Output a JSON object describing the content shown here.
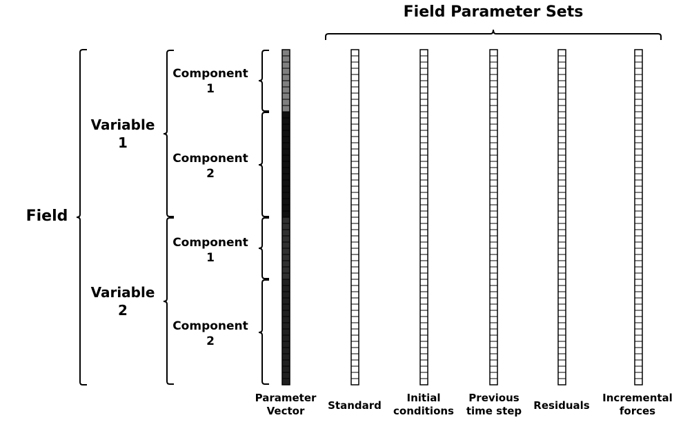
{
  "title": "Field Parameter Sets",
  "field_label": "Field",
  "variables": [
    {
      "label": [
        "Variable",
        "1"
      ],
      "components": [
        {
          "label": [
            "Component",
            "1"
          ],
          "cells": 10,
          "shade": "#808080"
        },
        {
          "label": [
            "Component",
            "2"
          ],
          "cells": 17,
          "shade": "#111111"
        }
      ]
    },
    {
      "label": [
        "Variable",
        "2"
      ],
      "components": [
        {
          "label": [
            "Component",
            "1"
          ],
          "cells": 10,
          "shade": "#303030"
        },
        {
          "label": [
            "Component",
            "2"
          ],
          "cells": 17,
          "shade": "#202020"
        }
      ]
    }
  ],
  "parameter_vector_label": [
    "Parameter",
    "Vector"
  ],
  "parameter_sets": [
    {
      "label": [
        "Standard"
      ]
    },
    {
      "label": [
        "Initial",
        "conditions"
      ]
    },
    {
      "label": [
        "Previous",
        "time step"
      ]
    },
    {
      "label": [
        "Residuals"
      ]
    },
    {
      "label": [
        "Incremental",
        "forces"
      ]
    }
  ],
  "colors": {
    "line": "#000000",
    "cell_fill": "#ffffff",
    "cell_border": "#000000"
  }
}
